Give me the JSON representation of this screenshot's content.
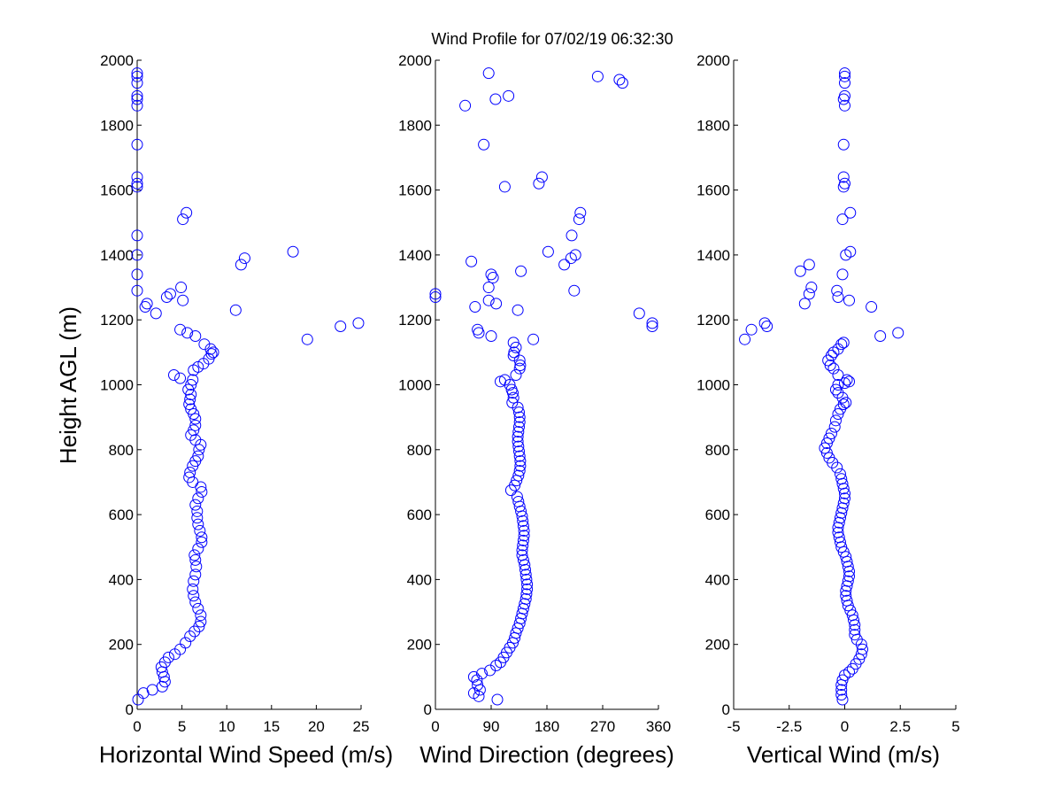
{
  "title": "Wind Profile for  07/02/19 06:32:30",
  "ylabel": "Height AGL (m)",
  "colors": {
    "marker": "#0000ff",
    "axis": "#000000",
    "background": "#ffffff"
  },
  "chart_data": [
    {
      "type": "scatter",
      "xlabel": "Horizontal Wind Speed (m/s)",
      "xlim": [
        0,
        25
      ],
      "ylim": [
        0,
        2000
      ],
      "xticks": [
        0,
        5,
        10,
        15,
        20,
        25
      ],
      "xtick_labels": [
        "0",
        "5",
        "10",
        "15",
        "20",
        "25"
      ],
      "yticks": [
        0,
        200,
        400,
        600,
        800,
        1000,
        1200,
        1400,
        1600,
        1800,
        2000
      ],
      "ytick_labels": [
        "0",
        "200",
        "400",
        "600",
        "800",
        "1000",
        "1200",
        "1400",
        "1600",
        "1800",
        "2000"
      ],
      "grid": false,
      "points": [
        [
          0.1,
          30
        ],
        [
          0.7,
          50
        ],
        [
          1.7,
          60
        ],
        [
          2.8,
          70
        ],
        [
          3.1,
          85
        ],
        [
          3.0,
          100
        ],
        [
          2.8,
          115
        ],
        [
          2.7,
          130
        ],
        [
          3.1,
          145
        ],
        [
          3.5,
          160
        ],
        [
          4.2,
          170
        ],
        [
          4.8,
          185
        ],
        [
          5.4,
          205
        ],
        [
          5.9,
          225
        ],
        [
          6.4,
          240
        ],
        [
          6.9,
          255
        ],
        [
          7.1,
          270
        ],
        [
          7.1,
          290
        ],
        [
          6.8,
          310
        ],
        [
          6.5,
          330
        ],
        [
          6.3,
          350
        ],
        [
          6.2,
          370
        ],
        [
          6.3,
          395
        ],
        [
          6.5,
          415
        ],
        [
          6.6,
          440
        ],
        [
          6.5,
          460
        ],
        [
          6.4,
          475
        ],
        [
          6.8,
          495
        ],
        [
          7.2,
          515
        ],
        [
          7.2,
          530
        ],
        [
          7.0,
          550
        ],
        [
          6.8,
          570
        ],
        [
          6.7,
          590
        ],
        [
          6.7,
          610
        ],
        [
          6.5,
          630
        ],
        [
          6.8,
          650
        ],
        [
          7.2,
          670
        ],
        [
          7.1,
          685
        ],
        [
          6.2,
          700
        ],
        [
          5.8,
          715
        ],
        [
          5.9,
          730
        ],
        [
          6.2,
          750
        ],
        [
          6.5,
          765
        ],
        [
          6.8,
          780
        ],
        [
          6.9,
          800
        ],
        [
          7.1,
          815
        ],
        [
          6.5,
          830
        ],
        [
          6.0,
          845
        ],
        [
          6.3,
          860
        ],
        [
          6.5,
          875
        ],
        [
          6.5,
          895
        ],
        [
          6.3,
          910
        ],
        [
          6.0,
          925
        ],
        [
          5.8,
          940
        ],
        [
          5.9,
          955
        ],
        [
          6.0,
          970
        ],
        [
          5.7,
          985
        ],
        [
          6.0,
          1000
        ],
        [
          6.2,
          1015
        ],
        [
          4.8,
          1020
        ],
        [
          4.1,
          1030
        ],
        [
          6.3,
          1045
        ],
        [
          6.8,
          1055
        ],
        [
          7.4,
          1065
        ],
        [
          8.0,
          1080
        ],
        [
          8.3,
          1095
        ],
        [
          8.5,
          1100
        ],
        [
          8.2,
          1110
        ],
        [
          7.5,
          1125
        ],
        [
          6.5,
          1150
        ],
        [
          5.6,
          1160
        ],
        [
          4.8,
          1170
        ],
        [
          11.0,
          1230
        ],
        [
          2.1,
          1220
        ],
        [
          0.9,
          1240
        ],
        [
          1.1,
          1250
        ],
        [
          5.1,
          1260
        ],
        [
          3.3,
          1270
        ],
        [
          3.7,
          1280
        ],
        [
          4.9,
          1300
        ],
        [
          0.0,
          1290
        ],
        [
          0.0,
          1340
        ],
        [
          11.6,
          1370
        ],
        [
          12.0,
          1390
        ],
        [
          17.4,
          1410
        ],
        [
          0.0,
          1400
        ],
        [
          0.0,
          1460
        ],
        [
          5.1,
          1510
        ],
        [
          5.5,
          1530
        ],
        [
          0.0,
          1610
        ],
        [
          0.0,
          1620
        ],
        [
          0.0,
          1640
        ],
        [
          0.0,
          1740
        ],
        [
          0.0,
          1860
        ],
        [
          0.0,
          1880
        ],
        [
          0.0,
          1890
        ],
        [
          0.0,
          1930
        ],
        [
          0.0,
          1950
        ],
        [
          0.0,
          1960
        ],
        [
          19.0,
          1140
        ],
        [
          22.7,
          1180
        ],
        [
          24.7,
          1190
        ]
      ]
    },
    {
      "type": "scatter",
      "xlabel": "Wind Direction (degrees)",
      "xlim": [
        0,
        360
      ],
      "ylim": [
        0,
        2000
      ],
      "xticks": [
        0,
        90,
        180,
        270,
        360
      ],
      "xtick_labels": [
        "0",
        "90",
        "180",
        "270",
        "360"
      ],
      "yticks": [
        0,
        200,
        400,
        600,
        800,
        1000,
        1200,
        1400,
        1600,
        1800,
        2000
      ],
      "ytick_labels": [
        "0",
        "200",
        "400",
        "600",
        "800",
        "1000",
        "1200",
        "1400",
        "1600",
        "1800",
        "2000"
      ],
      "grid": false,
      "points": [
        [
          100,
          30
        ],
        [
          70,
          40
        ],
        [
          62,
          50
        ],
        [
          72,
          60
        ],
        [
          68,
          75
        ],
        [
          67,
          90
        ],
        [
          62,
          100
        ],
        [
          75,
          110
        ],
        [
          88,
          120
        ],
        [
          98,
          135
        ],
        [
          105,
          145
        ],
        [
          110,
          160
        ],
        [
          115,
          175
        ],
        [
          120,
          190
        ],
        [
          125,
          205
        ],
        [
          128,
          220
        ],
        [
          130,
          235
        ],
        [
          133,
          250
        ],
        [
          136,
          265
        ],
        [
          138,
          280
        ],
        [
          140,
          295
        ],
        [
          142,
          310
        ],
        [
          144,
          325
        ],
        [
          146,
          340
        ],
        [
          147,
          355
        ],
        [
          148,
          370
        ],
        [
          148,
          385
        ],
        [
          147,
          400
        ],
        [
          146,
          415
        ],
        [
          145,
          430
        ],
        [
          144,
          445
        ],
        [
          142,
          460
        ],
        [
          140,
          475
        ],
        [
          140,
          490
        ],
        [
          141,
          505
        ],
        [
          142,
          520
        ],
        [
          143,
          535
        ],
        [
          143,
          550
        ],
        [
          142,
          565
        ],
        [
          141,
          580
        ],
        [
          140,
          595
        ],
        [
          138,
          610
        ],
        [
          136,
          625
        ],
        [
          134,
          640
        ],
        [
          132,
          655
        ],
        [
          122,
          675
        ],
        [
          128,
          690
        ],
        [
          131,
          705
        ],
        [
          134,
          720
        ],
        [
          136,
          735
        ],
        [
          137,
          750
        ],
        [
          137,
          765
        ],
        [
          136,
          780
        ],
        [
          135,
          795
        ],
        [
          134,
          810
        ],
        [
          133,
          825
        ],
        [
          133,
          840
        ],
        [
          134,
          855
        ],
        [
          135,
          870
        ],
        [
          136,
          885
        ],
        [
          136,
          900
        ],
        [
          135,
          915
        ],
        [
          133,
          930
        ],
        [
          124,
          945
        ],
        [
          126,
          960
        ],
        [
          125,
          975
        ],
        [
          123,
          985
        ],
        [
          120,
          1000
        ],
        [
          105,
          1010
        ],
        [
          112,
          1015
        ],
        [
          130,
          1030
        ],
        [
          136,
          1050
        ],
        [
          137,
          1060
        ],
        [
          136,
          1075
        ],
        [
          126,
          1090
        ],
        [
          127,
          1100
        ],
        [
          130,
          1115
        ],
        [
          126,
          1130
        ],
        [
          158,
          1140
        ],
        [
          90,
          1150
        ],
        [
          70,
          1160
        ],
        [
          68,
          1170
        ],
        [
          133,
          1230
        ],
        [
          64,
          1240
        ],
        [
          98,
          1250
        ],
        [
          86,
          1260
        ],
        [
          0,
          1270
        ],
        [
          0,
          1280
        ],
        [
          93,
          1330
        ],
        [
          86,
          1300
        ],
        [
          138,
          1350
        ],
        [
          90,
          1340
        ],
        [
          58,
          1380
        ],
        [
          208,
          1370
        ],
        [
          219,
          1390
        ],
        [
          182,
          1410
        ],
        [
          226,
          1400
        ],
        [
          220,
          1460
        ],
        [
          232,
          1510
        ],
        [
          234,
          1530
        ],
        [
          112,
          1610
        ],
        [
          167,
          1620
        ],
        [
          172,
          1640
        ],
        [
          78,
          1740
        ],
        [
          48,
          1860
        ],
        [
          97,
          1880
        ],
        [
          118,
          1890
        ],
        [
          302,
          1930
        ],
        [
          297,
          1940
        ],
        [
          262,
          1950
        ],
        [
          86,
          1960
        ],
        [
          224,
          1290
        ],
        [
          329,
          1220
        ],
        [
          350,
          1180
        ],
        [
          350,
          1190
        ]
      ]
    },
    {
      "type": "scatter",
      "xlabel": "Vertical Wind (m/s)",
      "xlim": [
        -5,
        5
      ],
      "ylim": [
        0,
        2000
      ],
      "xticks": [
        -5,
        -2.5,
        0,
        2.5,
        5
      ],
      "xtick_labels": [
        "-5",
        "-2.5",
        "0",
        "2.5",
        "5"
      ],
      "yticks": [
        0,
        200,
        400,
        600,
        800,
        1000,
        1200,
        1400,
        1600,
        1800,
        2000
      ],
      "ytick_labels": [
        "0",
        "200",
        "400",
        "600",
        "800",
        "1000",
        "1200",
        "1400",
        "1600",
        "1800",
        "2000"
      ],
      "grid": false,
      "points": [
        [
          -0.1,
          30
        ],
        [
          -0.15,
          45
        ],
        [
          -0.15,
          60
        ],
        [
          -0.15,
          75
        ],
        [
          -0.1,
          90
        ],
        [
          0.0,
          105
        ],
        [
          0.2,
          115
        ],
        [
          0.35,
          125
        ],
        [
          0.5,
          140
        ],
        [
          0.65,
          155
        ],
        [
          0.75,
          170
        ],
        [
          0.8,
          185
        ],
        [
          0.75,
          200
        ],
        [
          0.55,
          215
        ],
        [
          0.45,
          230
        ],
        [
          0.45,
          245
        ],
        [
          0.45,
          260
        ],
        [
          0.4,
          275
        ],
        [
          0.35,
          290
        ],
        [
          0.25,
          305
        ],
        [
          0.15,
          320
        ],
        [
          0.1,
          335
        ],
        [
          0.05,
          350
        ],
        [
          0.05,
          365
        ],
        [
          0.1,
          380
        ],
        [
          0.15,
          395
        ],
        [
          0.2,
          410
        ],
        [
          0.2,
          425
        ],
        [
          0.15,
          440
        ],
        [
          0.1,
          455
        ],
        [
          0.05,
          470
        ],
        [
          -0.05,
          485
        ],
        [
          -0.15,
          500
        ],
        [
          -0.2,
          515
        ],
        [
          -0.25,
          530
        ],
        [
          -0.3,
          545
        ],
        [
          -0.3,
          560
        ],
        [
          -0.25,
          575
        ],
        [
          -0.2,
          590
        ],
        [
          -0.15,
          605
        ],
        [
          -0.1,
          620
        ],
        [
          -0.05,
          635
        ],
        [
          0.0,
          650
        ],
        [
          0.0,
          665
        ],
        [
          -0.05,
          680
        ],
        [
          -0.1,
          695
        ],
        [
          -0.15,
          710
        ],
        [
          -0.2,
          725
        ],
        [
          -0.35,
          745
        ],
        [
          -0.55,
          760
        ],
        [
          -0.7,
          775
        ],
        [
          -0.8,
          790
        ],
        [
          -0.9,
          805
        ],
        [
          -0.8,
          820
        ],
        [
          -0.7,
          835
        ],
        [
          -0.6,
          850
        ],
        [
          -0.45,
          870
        ],
        [
          -0.4,
          890
        ],
        [
          -0.3,
          910
        ],
        [
          -0.2,
          925
        ],
        [
          -0.05,
          940
        ],
        [
          0.05,
          945
        ],
        [
          -0.1,
          960
        ],
        [
          -0.3,
          975
        ],
        [
          -0.4,
          985
        ],
        [
          -0.3,
          1000
        ],
        [
          0.0,
          1005
        ],
        [
          0.2,
          1010
        ],
        [
          0.1,
          1015
        ],
        [
          -0.3,
          1030
        ],
        [
          -0.5,
          1050
        ],
        [
          -0.65,
          1060
        ],
        [
          -0.75,
          1075
        ],
        [
          -0.6,
          1090
        ],
        [
          -0.5,
          1100
        ],
        [
          -0.3,
          1110
        ],
        [
          -0.15,
          1125
        ],
        [
          -0.05,
          1130
        ],
        [
          -4.5,
          1140
        ],
        [
          1.6,
          1150
        ],
        [
          -4.2,
          1170
        ],
        [
          -3.5,
          1180
        ],
        [
          -3.6,
          1190
        ],
        [
          2.4,
          1160
        ],
        [
          1.2,
          1240
        ],
        [
          -1.8,
          1250
        ],
        [
          0.2,
          1260
        ],
        [
          -0.3,
          1270
        ],
        [
          -1.6,
          1280
        ],
        [
          -0.35,
          1290
        ],
        [
          -1.5,
          1300
        ],
        [
          -0.1,
          1340
        ],
        [
          -2.0,
          1350
        ],
        [
          -1.6,
          1370
        ],
        [
          0.05,
          1400
        ],
        [
          0.25,
          1410
        ],
        [
          -0.1,
          1510
        ],
        [
          0.25,
          1530
        ],
        [
          -0.05,
          1610
        ],
        [
          0.0,
          1620
        ],
        [
          -0.05,
          1640
        ],
        [
          -0.05,
          1740
        ],
        [
          0.0,
          1860
        ],
        [
          -0.05,
          1880
        ],
        [
          0.0,
          1890
        ],
        [
          0.0,
          1930
        ],
        [
          0.0,
          1950
        ],
        [
          0.0,
          1960
        ]
      ]
    }
  ]
}
